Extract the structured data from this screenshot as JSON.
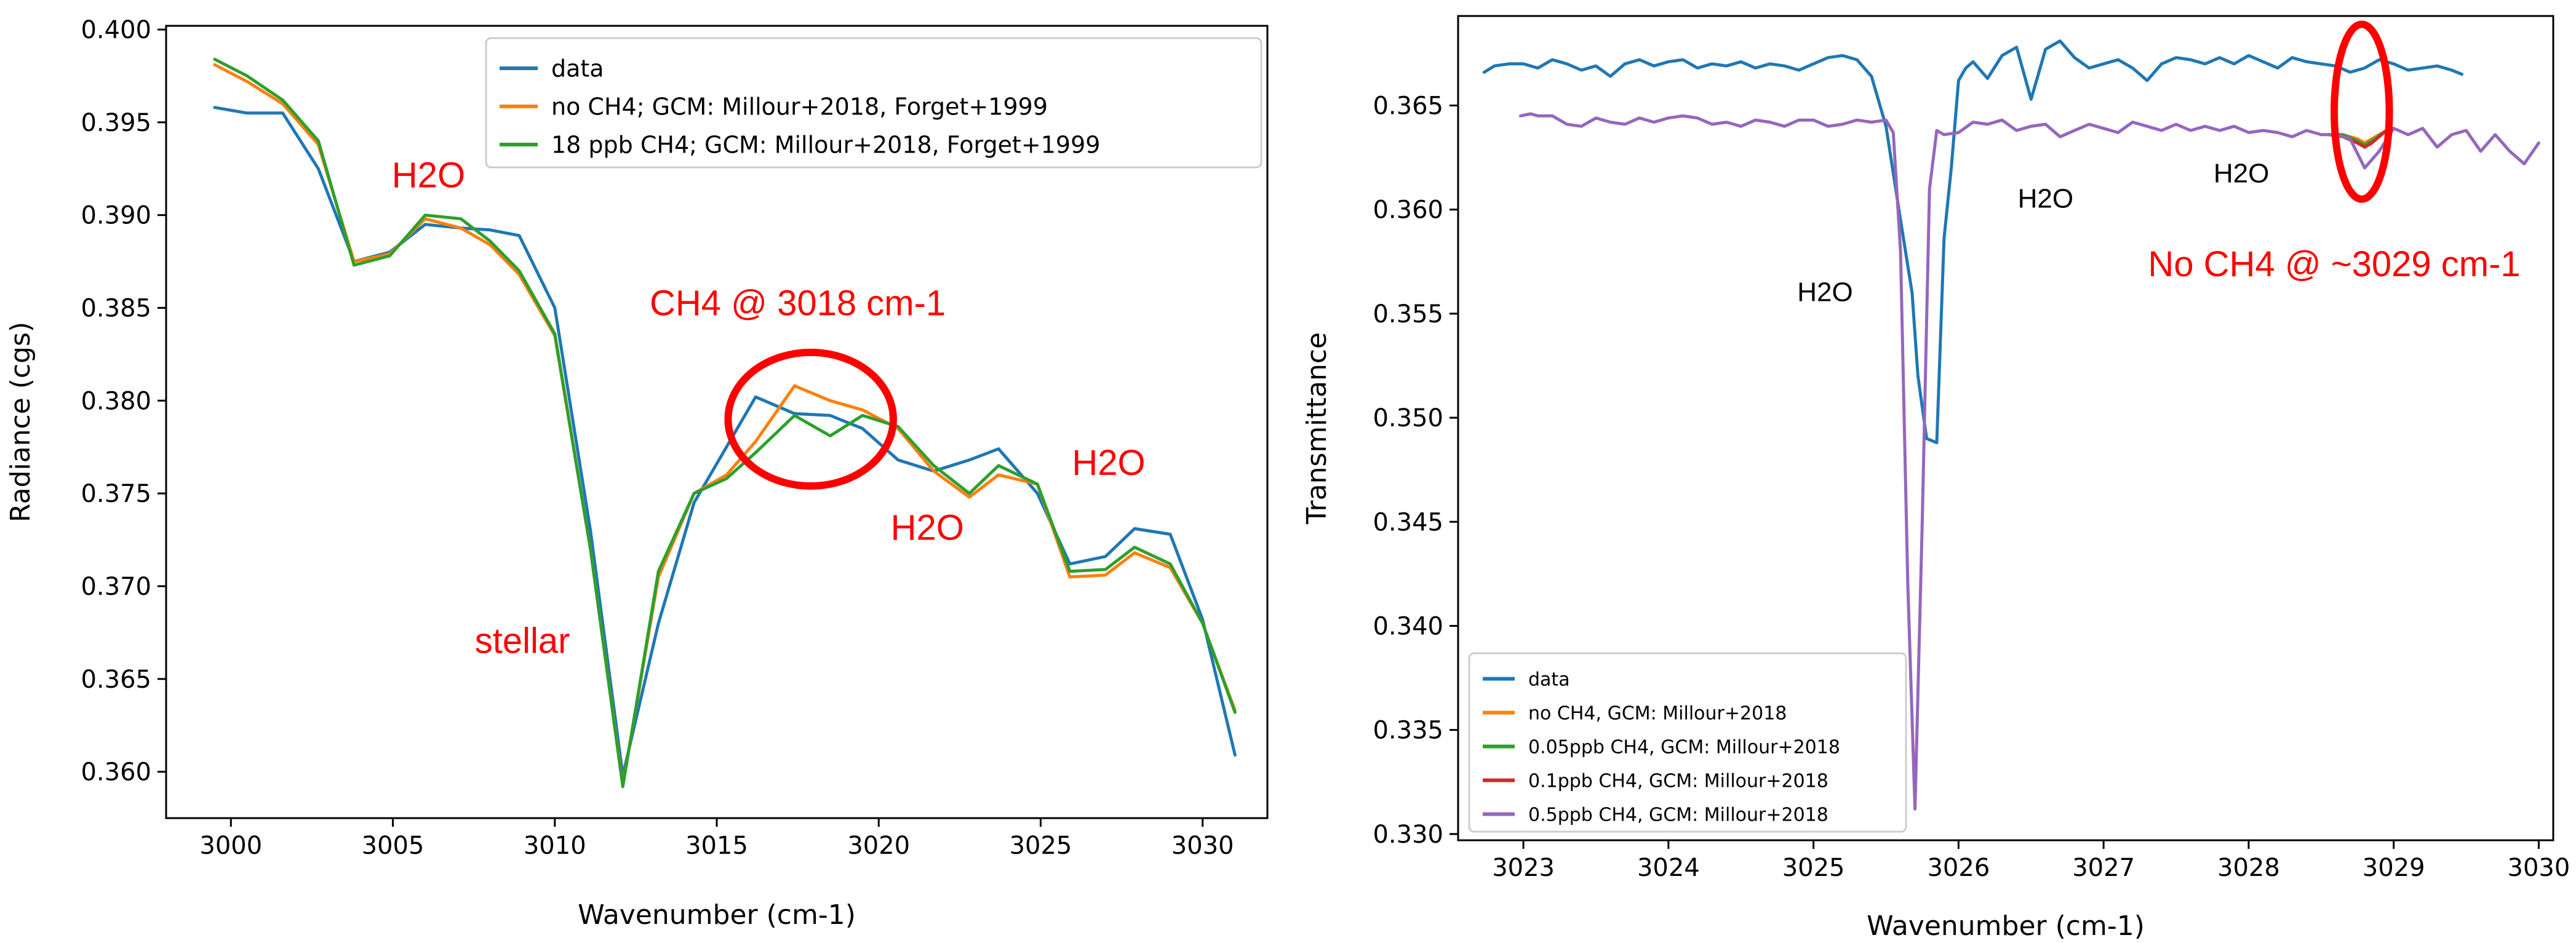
{
  "chart_data": [
    {
      "type": "line",
      "xlabel": "Wavenumber (cm-1)",
      "ylabel": "Radiance (cgs)",
      "xlim": [
        2998,
        3032
      ],
      "ylim": [
        0.3575,
        0.4002
      ],
      "xticks": [
        3000,
        3005,
        3010,
        3015,
        3020,
        3025,
        3030
      ],
      "xtick_labels": [
        "3000",
        "3005",
        "3010",
        "3015",
        "3020",
        "3025",
        "3030"
      ],
      "yticks": [
        0.36,
        0.365,
        0.37,
        0.375,
        0.38,
        0.385,
        0.39,
        0.395,
        0.4
      ],
      "ytick_labels": [
        "0.360",
        "0.365",
        "0.370",
        "0.375",
        "0.380",
        "0.385",
        "0.390",
        "0.395",
        "0.400"
      ],
      "legend_position": "top-right",
      "series": [
        {
          "name": "data",
          "color": "#1f77b4",
          "x": [
            2999.5,
            3000.5,
            3001.6,
            3002.7,
            3003.8,
            3004.9,
            3006.0,
            3007.1,
            3008.0,
            3008.9,
            3010.0,
            3011.1,
            3012.1,
            3013.2,
            3014.3,
            3015.3,
            3016.2,
            3017.4,
            3018.5,
            3019.5,
            3020.6,
            3021.7,
            3022.8,
            3023.7,
            3024.9,
            3025.9,
            3027.0,
            3027.9,
            3029.0,
            3030.0,
            3031.0
          ],
          "y": [
            0.3958,
            0.3955,
            0.3955,
            0.3925,
            0.3875,
            0.388,
            0.3895,
            0.3893,
            0.3892,
            0.3889,
            0.385,
            0.373,
            0.3598,
            0.368,
            0.3745,
            0.3775,
            0.3802,
            0.3793,
            0.3792,
            0.3785,
            0.3768,
            0.3762,
            0.3768,
            0.3774,
            0.375,
            0.3712,
            0.3716,
            0.3731,
            0.3728,
            0.3682,
            0.3609
          ]
        },
        {
          "name": "no CH4; GCM: Millour+2018, Forget+1999",
          "color": "#ff7f0e",
          "x": [
            2999.5,
            3000.5,
            3001.6,
            3002.7,
            3003.8,
            3004.9,
            3006.0,
            3007.1,
            3008.0,
            3008.9,
            3010.0,
            3011.1,
            3012.1,
            3013.2,
            3014.3,
            3015.3,
            3016.2,
            3017.4,
            3018.5,
            3019.5,
            3020.6,
            3021.7,
            3022.8,
            3023.7,
            3024.9,
            3025.9,
            3027.0,
            3027.9,
            3029.0,
            3030.0,
            3031.0
          ],
          "y": [
            0.3981,
            0.3972,
            0.396,
            0.3938,
            0.3875,
            0.3879,
            0.3898,
            0.3893,
            0.3884,
            0.3868,
            0.3835,
            0.372,
            0.3593,
            0.3705,
            0.375,
            0.376,
            0.3778,
            0.3808,
            0.38,
            0.3795,
            0.3785,
            0.3762,
            0.3748,
            0.376,
            0.3755,
            0.3705,
            0.3706,
            0.3718,
            0.371,
            0.368,
            0.3633
          ]
        },
        {
          "name": "18 ppb CH4; GCM: Millour+2018, Forget+1999",
          "color": "#2ca02c",
          "x": [
            2999.5,
            3000.5,
            3001.6,
            3002.7,
            3003.8,
            3004.9,
            3006.0,
            3007.1,
            3008.0,
            3008.9,
            3010.0,
            3011.1,
            3012.1,
            3013.2,
            3014.3,
            3015.3,
            3016.2,
            3017.4,
            3018.5,
            3019.5,
            3020.6,
            3021.7,
            3022.8,
            3023.7,
            3024.9,
            3025.9,
            3027.0,
            3027.9,
            3029.0,
            3030.0,
            3031.0
          ],
          "y": [
            0.3984,
            0.3975,
            0.3962,
            0.394,
            0.3873,
            0.3878,
            0.39,
            0.3898,
            0.3886,
            0.387,
            0.3836,
            0.372,
            0.3592,
            0.3708,
            0.375,
            0.3758,
            0.3772,
            0.3792,
            0.3781,
            0.3792,
            0.3786,
            0.3765,
            0.375,
            0.3765,
            0.3755,
            0.3708,
            0.3709,
            0.3721,
            0.3712,
            0.368,
            0.3632
          ]
        }
      ],
      "annotations": [
        {
          "text": "H2O",
          "x": 3006.1,
          "y": 0.3915
        },
        {
          "text": "CH4 @ 3018 cm-1",
          "x": 3017.5,
          "y": 0.3846
        },
        {
          "text": "H2O",
          "x": 3027.1,
          "y": 0.376
        },
        {
          "text": "H2O",
          "x": 3021.5,
          "y": 0.3725
        },
        {
          "text": "stellar",
          "x": 3009.0,
          "y": 0.3664
        }
      ],
      "highlight_ellipse": {
        "center_x": 3017.9,
        "center_y": 0.379,
        "rx_data": 2.55,
        "ry_data": 0.0036
      }
    },
    {
      "type": "line",
      "xlabel": "Wavenumber (cm-1)",
      "ylabel": "Transmittance",
      "xlim": [
        3022.55,
        3030.1
      ],
      "ylim": [
        0.3297,
        0.3693
      ],
      "xticks": [
        3023,
        3024,
        3025,
        3026,
        3027,
        3028,
        3029,
        3030
      ],
      "xtick_labels": [
        "3023",
        "3024",
        "3025",
        "3026",
        "3027",
        "3028",
        "3029",
        "3030"
      ],
      "yticks": [
        0.33,
        0.335,
        0.34,
        0.345,
        0.35,
        0.355,
        0.36,
        0.365
      ],
      "ytick_labels": [
        "0.330",
        "0.335",
        "0.340",
        "0.345",
        "0.350",
        "0.355",
        "0.360",
        "0.365"
      ],
      "legend_position": "bottom-left",
      "series": [
        {
          "name": "data",
          "color": "#1f77b4",
          "x": [
            3022.73,
            3022.8,
            3022.9,
            3023.0,
            3023.1,
            3023.2,
            3023.3,
            3023.4,
            3023.5,
            3023.6,
            3023.7,
            3023.8,
            3023.9,
            3024.0,
            3024.1,
            3024.2,
            3024.3,
            3024.4,
            3024.5,
            3024.6,
            3024.7,
            3024.8,
            3024.9,
            3025.0,
            3025.1,
            3025.2,
            3025.3,
            3025.4,
            3025.5,
            3025.6,
            3025.68,
            3025.72,
            3025.78,
            3025.85,
            3025.9,
            3025.95,
            3026.0,
            3026.05,
            3026.1,
            3026.2,
            3026.3,
            3026.4,
            3026.5,
            3026.6,
            3026.7,
            3026.8,
            3026.9,
            3027.0,
            3027.1,
            3027.2,
            3027.3,
            3027.4,
            3027.5,
            3027.6,
            3027.7,
            3027.8,
            3027.9,
            3028.0,
            3028.1,
            3028.2,
            3028.3,
            3028.4,
            3028.5,
            3028.6,
            3028.7,
            3028.8,
            3028.9,
            3029.0,
            3029.1,
            3029.2,
            3029.3,
            3029.4,
            3029.47
          ],
          "y": [
            0.3666,
            0.3669,
            0.367,
            0.367,
            0.3668,
            0.3672,
            0.367,
            0.3667,
            0.3669,
            0.3664,
            0.367,
            0.3672,
            0.3669,
            0.3671,
            0.3672,
            0.3668,
            0.367,
            0.3669,
            0.3671,
            0.3668,
            0.367,
            0.3669,
            0.3667,
            0.367,
            0.3673,
            0.3674,
            0.3672,
            0.3664,
            0.364,
            0.3595,
            0.356,
            0.352,
            0.349,
            0.3488,
            0.3586,
            0.362,
            0.3662,
            0.3668,
            0.3671,
            0.3663,
            0.3674,
            0.3678,
            0.3653,
            0.3677,
            0.3681,
            0.3673,
            0.3668,
            0.367,
            0.3672,
            0.3668,
            0.3662,
            0.367,
            0.3673,
            0.3672,
            0.367,
            0.3673,
            0.367,
            0.3674,
            0.3671,
            0.3668,
            0.3673,
            0.3671,
            0.367,
            0.3669,
            0.3666,
            0.3668,
            0.3672,
            0.367,
            0.3667,
            0.3668,
            0.3669,
            0.3667,
            0.3665
          ]
        },
        {
          "name": "no CH4, GCM: Millour+2018",
          "color": "#ff7f0e",
          "x": [
            3028.55,
            3028.65,
            3028.75,
            3028.8,
            3028.85,
            3028.95
          ],
          "y": [
            0.3636,
            0.3636,
            0.3634,
            0.3632,
            0.3634,
            0.3638
          ]
        },
        {
          "name": "0.05ppb CH4, GCM: Millour+2018",
          "color": "#2ca02c",
          "x": [
            3028.55,
            3028.65,
            3028.75,
            3028.8,
            3028.85,
            3028.95
          ],
          "y": [
            0.3636,
            0.3636,
            0.3633,
            0.3631,
            0.3633,
            0.3638
          ]
        },
        {
          "name": "0.1ppb CH4, GCM: Millour+2018",
          "color": "#d62728",
          "x": [
            3028.55,
            3028.65,
            3028.75,
            3028.8,
            3028.85,
            3028.95
          ],
          "y": [
            0.3636,
            0.3635,
            0.3632,
            0.363,
            0.3632,
            0.3638
          ]
        },
        {
          "name": "0.5ppb CH4, GCM: Millour+2018",
          "color": "#9467bd",
          "x": [
            3022.98,
            3023.05,
            3023.1,
            3023.2,
            3023.3,
            3023.4,
            3023.5,
            3023.6,
            3023.7,
            3023.8,
            3023.9,
            3024.0,
            3024.1,
            3024.2,
            3024.3,
            3024.4,
            3024.5,
            3024.6,
            3024.7,
            3024.8,
            3024.9,
            3025.0,
            3025.1,
            3025.2,
            3025.3,
            3025.4,
            3025.5,
            3025.55,
            3025.6,
            3025.65,
            3025.7,
            3025.75,
            3025.8,
            3025.85,
            3025.9,
            3026.0,
            3026.1,
            3026.2,
            3026.3,
            3026.4,
            3026.5,
            3026.6,
            3026.7,
            3026.8,
            3026.9,
            3027.0,
            3027.1,
            3027.2,
            3027.3,
            3027.4,
            3027.5,
            3027.6,
            3027.7,
            3027.8,
            3027.9,
            3028.0,
            3028.1,
            3028.2,
            3028.3,
            3028.4,
            3028.5,
            3028.6,
            3028.7,
            3028.8,
            3028.9,
            3029.0,
            3029.1,
            3029.2,
            3029.3,
            3029.4,
            3029.5,
            3029.6,
            3029.7,
            3029.8,
            3029.9,
            3030.0
          ],
          "y": [
            0.3645,
            0.3646,
            0.3645,
            0.3645,
            0.3641,
            0.364,
            0.3644,
            0.3642,
            0.3641,
            0.3644,
            0.3642,
            0.3644,
            0.3645,
            0.3644,
            0.3641,
            0.3642,
            0.364,
            0.3643,
            0.3642,
            0.364,
            0.3643,
            0.3643,
            0.364,
            0.3641,
            0.3643,
            0.3642,
            0.3643,
            0.3637,
            0.358,
            0.342,
            0.3312,
            0.345,
            0.361,
            0.3638,
            0.3636,
            0.3637,
            0.3642,
            0.3641,
            0.3643,
            0.3638,
            0.364,
            0.3641,
            0.3635,
            0.3638,
            0.3641,
            0.3639,
            0.3637,
            0.3642,
            0.364,
            0.3638,
            0.3641,
            0.3638,
            0.364,
            0.3638,
            0.364,
            0.3637,
            0.3638,
            0.3637,
            0.3635,
            0.3638,
            0.3636,
            0.3636,
            0.3634,
            0.362,
            0.3628,
            0.3639,
            0.3636,
            0.3639,
            0.363,
            0.3636,
            0.3638,
            0.3628,
            0.3636,
            0.3628,
            0.3622,
            0.3632
          ]
        }
      ],
      "annotations": [
        {
          "text": "H2O",
          "x": 3025.08,
          "y": 0.3556,
          "color": "#000000"
        },
        {
          "text": "H2O",
          "x": 3026.6,
          "y": 0.3601,
          "color": "#000000"
        },
        {
          "text": "H2O",
          "x": 3027.95,
          "y": 0.3613,
          "color": "#000000"
        },
        {
          "text": "No CH4 @ ~3029 cm-1",
          "x": 3028.59,
          "y": 0.3568,
          "color": "#ff0000"
        }
      ],
      "highlight_ellipse": {
        "center_x": 3028.78,
        "center_y": 0.3647,
        "rx_data": 0.19,
        "ry_data": 0.0042
      }
    }
  ]
}
